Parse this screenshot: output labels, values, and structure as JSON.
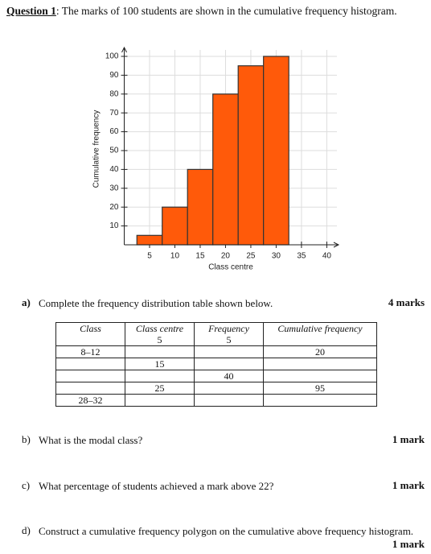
{
  "question": {
    "label": "Question 1",
    "text": ": The marks of 100 students are shown in the cumulative frequency histogram."
  },
  "chart_data": {
    "type": "histogram",
    "xlabel": "Class centre",
    "ylabel": "Cumulative frequency",
    "bins": [
      2.5,
      7.5,
      12.5,
      17.5,
      22.5,
      27.5,
      32.5
    ],
    "values": [
      5,
      20,
      40,
      80,
      95,
      100
    ],
    "color": "#ff5a0a",
    "xlim": [
      0,
      42
    ],
    "xticks": [
      5,
      10,
      15,
      20,
      25,
      30,
      35,
      40
    ],
    "ylim": [
      0,
      100
    ],
    "yticks": [
      10,
      20,
      30,
      40,
      50,
      60,
      70,
      80,
      90,
      100
    ],
    "grid": true
  },
  "parts": [
    {
      "label": "a)",
      "text": "Complete the frequency distribution table shown below.",
      "marks": "4 marks"
    },
    {
      "label": "b)",
      "text": "What is the modal class?",
      "marks": "1 mark"
    },
    {
      "label": "c)",
      "text": "What percentage of students achieved a mark above 22?",
      "marks": "1 mark"
    },
    {
      "label": "d)",
      "text": "Construct a cumulative frequency polygon on the cumulative above frequency histogram.",
      "marks": "1 mark"
    }
  ],
  "table": {
    "headers": [
      "Class",
      "Class centre",
      "Frequency",
      "Cumulative frequency"
    ],
    "rows": [
      [
        null,
        "5",
        "5",
        null
      ],
      [
        "8–12",
        null,
        null,
        "20"
      ],
      [
        null,
        "15",
        null,
        null
      ],
      [
        null,
        null,
        "40",
        null
      ],
      [
        null,
        "25",
        null,
        "95"
      ],
      [
        "28–32",
        null,
        null,
        null
      ]
    ]
  }
}
